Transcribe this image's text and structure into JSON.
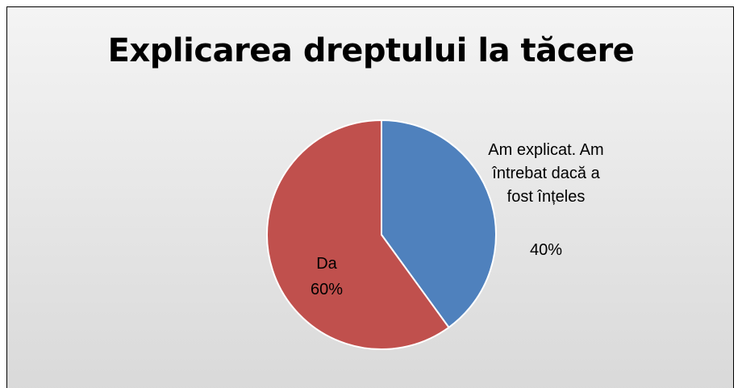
{
  "chart_data": {
    "type": "pie",
    "title": "Explicarea dreptului la tăcere",
    "categories": [
      "Am explicat. Am întrebat dacă a fost înțeles",
      "Da"
    ],
    "values": [
      40,
      60
    ],
    "value_labels": [
      "40%",
      "60%"
    ],
    "colors": [
      "#4f81bd",
      "#c0504d"
    ]
  }
}
